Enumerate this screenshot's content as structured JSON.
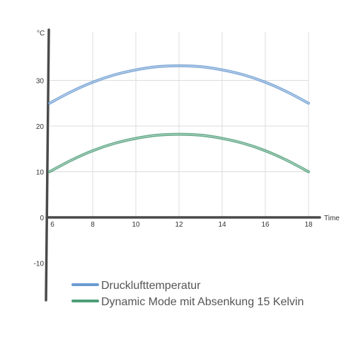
{
  "chart_data": {
    "type": "line",
    "xlabel": "Time",
    "ylabel": "°C",
    "xlim": [
      6,
      18
    ],
    "ylim": [
      -18,
      42
    ],
    "x_ticks": [
      6,
      8,
      10,
      12,
      14,
      16,
      18
    ],
    "y_ticks": [
      -10,
      0,
      10,
      20,
      30
    ],
    "grid": true,
    "legend_position": "bottom-left",
    "x": [
      6,
      7,
      8,
      9,
      10,
      11,
      12,
      13,
      14,
      15,
      16,
      17,
      18
    ],
    "series": [
      {
        "name": "Drucklufttemperatur",
        "color": "#6b9bd1",
        "values": [
          25,
          27.5,
          29.6,
          31.2,
          32.3,
          33.0,
          33.2,
          33.0,
          32.3,
          31.2,
          29.6,
          27.5,
          25
        ]
      },
      {
        "name": "Dynamic Mode mit Absenkung 15 Kelvin",
        "color": "#4e9e78",
        "values": [
          10,
          12.5,
          14.6,
          16.2,
          17.3,
          18.0,
          18.2,
          18.0,
          17.3,
          16.2,
          14.6,
          12.5,
          10
        ]
      }
    ]
  }
}
